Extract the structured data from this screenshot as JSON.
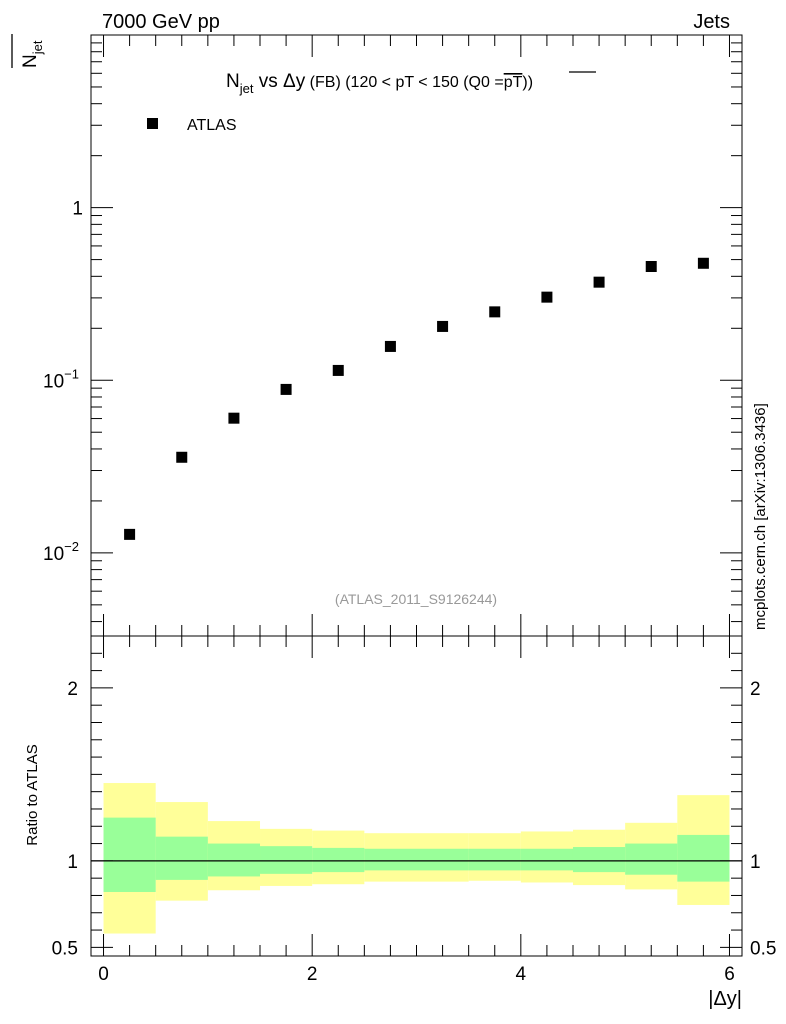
{
  "header": {
    "left": "7000 GeV pp",
    "right": "Jets"
  },
  "title": {
    "main": "N",
    "main_sub": "jet",
    "vs": " vs Δy",
    "paren": " (FB) (120 < pT < 150 (Q0 =",
    "overline": "pT",
    "close": "))"
  },
  "legend": {
    "label": "ATLAS",
    "position": "top-left"
  },
  "ylabel_top": {
    "text": "N",
    "sub": "jet"
  },
  "ylabel_bottom": "Ratio to ATLAS",
  "xlabel": "|Δy|",
  "watermark": "(ATLAS_2011_S9126244)",
  "side_credit": "mcplots.cern.ch [arXiv:1306.3436]",
  "colors": {
    "marker": "#000000",
    "band_inner": "#99ff99",
    "band_outer": "#ffff99",
    "watermark": "#999999"
  },
  "chart_data": [
    {
      "type": "scatter",
      "panel": "main",
      "yscale": "log",
      "ylim": [
        0.0033,
        10
      ],
      "xlim": [
        -0.12,
        6.12
      ],
      "yticks": [
        {
          "value": 0.01,
          "base": "10",
          "exp": "−2"
        },
        {
          "value": 0.1,
          "base": "10",
          "exp": "−1"
        },
        {
          "value": 1,
          "base": "1",
          "exp": ""
        }
      ],
      "series": [
        {
          "name": "ATLAS",
          "x": [
            0.25,
            0.75,
            1.25,
            1.75,
            2.25,
            2.75,
            3.25,
            3.75,
            4.25,
            4.75,
            5.25,
            5.75
          ],
          "values": [
            0.0128,
            0.0358,
            0.0603,
            0.0885,
            0.114,
            0.157,
            0.205,
            0.249,
            0.303,
            0.37,
            0.456,
            0.476
          ]
        }
      ]
    },
    {
      "type": "area",
      "panel": "ratio",
      "ylabel": "Ratio to ATLAS",
      "xlabel": "|Δy|",
      "ylim": [
        0.45,
        2.3
      ],
      "xlim": [
        -0.12,
        6.12
      ],
      "xticks": [
        0,
        2,
        4,
        6
      ],
      "yticks": [
        0.5,
        1,
        2
      ],
      "bin_edges": [
        0,
        0.5,
        1,
        1.5,
        2,
        2.5,
        3,
        3.5,
        4,
        4.5,
        5,
        5.5,
        6
      ],
      "inner_band": {
        "low": [
          0.82,
          0.89,
          0.91,
          0.925,
          0.935,
          0.945,
          0.945,
          0.945,
          0.945,
          0.935,
          0.92,
          0.88
        ],
        "high": [
          1.25,
          1.14,
          1.1,
          1.085,
          1.075,
          1.07,
          1.07,
          1.07,
          1.07,
          1.08,
          1.1,
          1.15
        ]
      },
      "outer_band": {
        "low": [
          0.58,
          0.77,
          0.83,
          0.855,
          0.865,
          0.88,
          0.88,
          0.885,
          0.875,
          0.86,
          0.835,
          0.745
        ],
        "high": [
          1.45,
          1.34,
          1.23,
          1.185,
          1.175,
          1.16,
          1.16,
          1.16,
          1.17,
          1.18,
          1.22,
          1.38
        ]
      },
      "reference_line": 1
    }
  ]
}
